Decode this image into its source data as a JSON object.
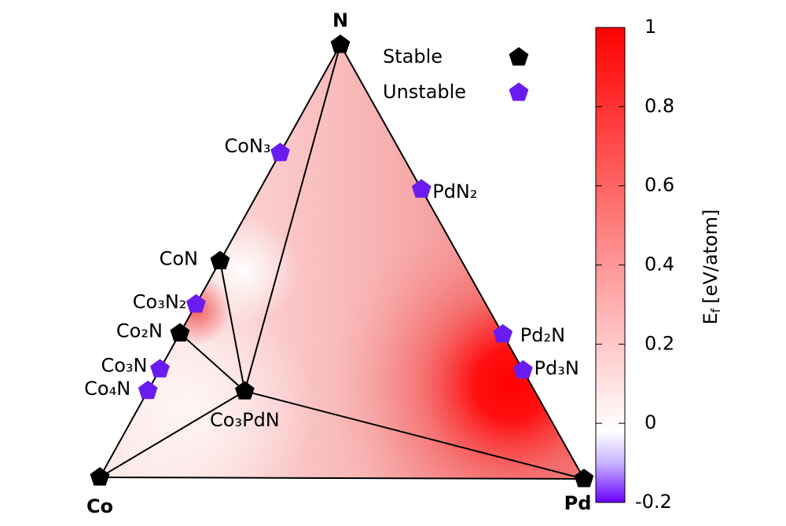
{
  "chart_data": {
    "type": "ternary",
    "vertices": [
      "Co",
      "Pd",
      "N"
    ],
    "points": [
      {
        "label": "N",
        "composition": [
          0,
          0,
          1
        ],
        "stable": true
      },
      {
        "label": "Co",
        "composition": [
          1,
          0,
          0
        ],
        "stable": true
      },
      {
        "label": "Pd",
        "composition": [
          0,
          1,
          0
        ],
        "stable": true
      },
      {
        "label": "CoN₃",
        "composition": [
          0.25,
          0,
          0.75
        ],
        "stable": false
      },
      {
        "label": "PdN₂",
        "composition": [
          0,
          0.333,
          0.667
        ],
        "stable": false
      },
      {
        "label": "CoN",
        "composition": [
          0.5,
          0,
          0.5
        ],
        "stable": true
      },
      {
        "label": "Co₃N₂",
        "composition": [
          0.6,
          0,
          0.4
        ],
        "stable": false
      },
      {
        "label": "Co₂N",
        "composition": [
          0.667,
          0,
          0.333
        ],
        "stable": true
      },
      {
        "label": "Pd₂N",
        "composition": [
          0,
          0.667,
          0.333
        ],
        "stable": false
      },
      {
        "label": "Co₃N",
        "composition": [
          0.75,
          0,
          0.25
        ],
        "stable": false
      },
      {
        "label": "Pd₃N",
        "composition": [
          0,
          0.75,
          0.25
        ],
        "stable": false
      },
      {
        "label": "Co₄N",
        "composition": [
          0.8,
          0,
          0.2
        ],
        "stable": false
      },
      {
        "label": "Co₃PdN",
        "composition": [
          0.6,
          0.2,
          0.2
        ],
        "stable": true
      }
    ],
    "tie_lines": [
      [
        0,
        12
      ],
      [
        5,
        12
      ],
      [
        7,
        12
      ],
      [
        1,
        12
      ],
      [
        2,
        12
      ]
    ],
    "legend": [
      {
        "name": "Stable",
        "color": "#000000",
        "stable": true
      },
      {
        "name": "Unstable",
        "color": "#6a1bf0",
        "stable": false
      }
    ],
    "colorbar": {
      "label": "E",
      "label_sub": "f",
      "label_rest": "[eV/atom]",
      "clim": [
        -0.2,
        1
      ],
      "ticks": [
        1,
        0.8,
        0.6,
        0.4,
        0.2,
        0,
        -0.2
      ],
      "stops": [
        {
          "value": -0.2,
          "color": "#6a00ff"
        },
        {
          "value": -0.1,
          "color": "#c9b5ff"
        },
        {
          "value": -0.02,
          "color": "#ffffff"
        },
        {
          "value": 1,
          "color": "#ff0000"
        }
      ]
    }
  }
}
